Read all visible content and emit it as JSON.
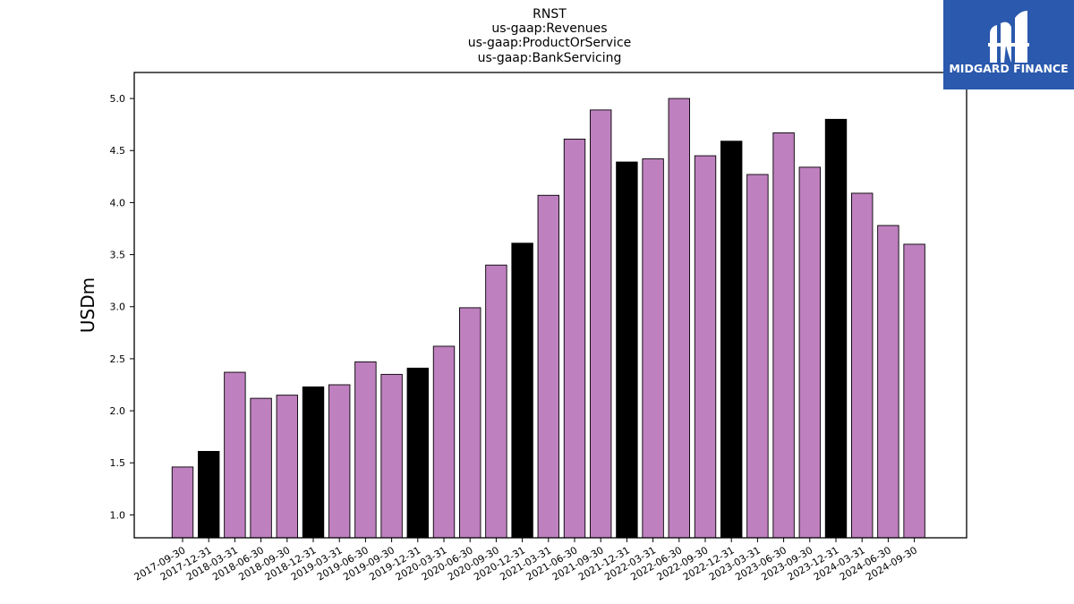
{
  "colors": {
    "bar_default": "#bf80bf",
    "bar_highlight": "#000000",
    "bar_edge": "#000000",
    "logo_bg": "#2a59ad",
    "logo_fg": "#ffffff"
  },
  "logo": {
    "text": "MIDGARD FINANCE",
    "icon": "midgard-logo-icon"
  },
  "chart_data": {
    "type": "bar",
    "title_lines": [
      "RNST",
      "us-gaap:Revenues",
      "us-gaap:ProductOrService",
      "us-gaap:BankServicing"
    ],
    "xlabel": "",
    "ylabel": "USDm",
    "ylim": [
      0.78,
      5.25
    ],
    "yticks": [
      "1.0",
      "1.5",
      "2.0",
      "2.5",
      "3.0",
      "3.5",
      "4.0",
      "4.5",
      "5.0"
    ],
    "grid": false,
    "categories": [
      "2017-09-30",
      "2017-12-31",
      "2018-03-31",
      "2018-06-30",
      "2018-09-30",
      "2018-12-31",
      "2019-03-31",
      "2019-06-30",
      "2019-09-30",
      "2019-12-31",
      "2020-03-31",
      "2020-06-30",
      "2020-09-30",
      "2020-12-31",
      "2021-03-31",
      "2021-06-30",
      "2021-09-30",
      "2021-12-31",
      "2022-03-31",
      "2022-06-30",
      "2022-09-30",
      "2022-12-31",
      "2023-03-31",
      "2023-06-30",
      "2023-09-30",
      "2023-12-31",
      "2024-03-31",
      "2024-06-30",
      "2024-09-30"
    ],
    "values": [
      1.46,
      1.61,
      2.37,
      2.12,
      2.15,
      2.23,
      2.25,
      2.47,
      2.35,
      2.41,
      2.62,
      2.99,
      3.4,
      3.61,
      4.07,
      4.61,
      4.89,
      4.39,
      4.42,
      5.0,
      4.45,
      4.59,
      4.27,
      4.67,
      4.34,
      4.8,
      4.09,
      3.78,
      3.6
    ],
    "highlighted": [
      false,
      true,
      false,
      false,
      false,
      true,
      false,
      false,
      false,
      true,
      false,
      false,
      false,
      true,
      false,
      false,
      false,
      true,
      false,
      false,
      false,
      true,
      false,
      false,
      false,
      true,
      false,
      false,
      false
    ]
  }
}
